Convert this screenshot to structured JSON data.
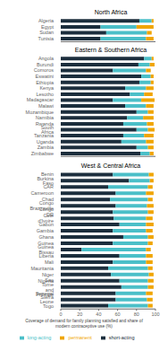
{
  "chart_data": [
    {
      "type": "bar",
      "title": "North Africa",
      "orientation": "horizontal",
      "stacked": true,
      "tick_labels": "y",
      "categories": [
        "Algeria",
        "Egypt",
        "Sudan",
        "Tunisia"
      ],
      "series": [
        {
          "name": "short-acting",
          "color": "#1c2e3d",
          "values": [
            83,
            42,
            48,
            42
          ]
        },
        {
          "name": "long-acting",
          "color": "#4bbfc8",
          "values": [
            13,
            38,
            43,
            48
          ]
        },
        {
          "name": "permanent",
          "color": "#f0a500",
          "values": [
            2,
            18,
            5,
            8
          ]
        }
      ],
      "xlim": [
        0,
        100
      ],
      "xticks": [
        0,
        20,
        40,
        60,
        80,
        100
      ],
      "grid": false
    },
    {
      "type": "bar",
      "title": "Eastern & Southern Africa",
      "orientation": "horizontal",
      "stacked": true,
      "tick_labels": "y",
      "categories": [
        "Angola",
        "Burundi",
        "Comoros",
        "Eswatini",
        "Ethiopia",
        "Kenya",
        "Lesotho",
        "Madagascar",
        "Malawi",
        "Mozambique",
        "Namibia",
        "Rwanda",
        "South Africa",
        "Tanzania",
        "Uganda",
        "Zambia",
        "Zimbabwe"
      ],
      "series": [
        {
          "name": "short-acting",
          "color": "#1c2e3d",
          "values": [
            88,
            82,
            55,
            85,
            83,
            68,
            73,
            55,
            68,
            80,
            70,
            66,
            80,
            66,
            64,
            80,
            84
          ]
        },
        {
          "name": "long-acting",
          "color": "#4bbfc8",
          "values": [
            8,
            12,
            35,
            10,
            12,
            22,
            15,
            30,
            22,
            12,
            17,
            25,
            12,
            22,
            26,
            12,
            10
          ]
        },
        {
          "name": "permanent",
          "color": "#f0a500",
          "values": [
            2,
            5,
            5,
            3,
            3,
            8,
            9,
            14,
            8,
            6,
            11,
            7,
            7,
            10,
            8,
            6,
            4
          ]
        }
      ],
      "xlim": [
        0,
        100
      ],
      "xticks": [
        0,
        20,
        40,
        60,
        80,
        100
      ],
      "grid": false
    },
    {
      "type": "bar",
      "title": "West & Central Africa",
      "orientation": "horizontal",
      "stacked": true,
      "xlabel": "Coverage of demand for family planning satisfied and share of\nmodern contraceptive use (%)",
      "categories": [
        "Benin",
        "Burkina Faso",
        "CAR",
        "Cameroon",
        "Chad",
        "Congo Brazzaville",
        "Congo DR",
        "Cote d'Ivoire",
        "Gabon",
        "Gambia",
        "Ghana",
        "Guinea",
        "Guinea Bissau",
        "Liberia",
        "Mali",
        "Mauritania",
        "Niger",
        "Nigeria",
        "Sao Tome and Principe",
        "Senegal",
        "Sierra Leone",
        "Togo"
      ],
      "series": [
        {
          "name": "short-acting",
          "color": "#1c2e3d",
          "values": [
            55,
            72,
            50,
            58,
            52,
            58,
            55,
            56,
            62,
            55,
            66,
            55,
            22,
            62,
            55,
            50,
            53,
            62,
            64,
            58,
            58,
            50
          ]
        },
        {
          "name": "long-acting",
          "color": "#4bbfc8",
          "values": [
            38,
            22,
            42,
            32,
            40,
            33,
            37,
            34,
            28,
            35,
            26,
            37,
            68,
            28,
            35,
            42,
            40,
            30,
            28,
            32,
            33,
            42
          ]
        },
        {
          "name": "permanent",
          "color": "#f0a500",
          "values": [
            5,
            4,
            5,
            8,
            5,
            7,
            6,
            7,
            8,
            7,
            6,
            5,
            5,
            7,
            7,
            5,
            5,
            6,
            6,
            7,
            6,
            5
          ]
        }
      ],
      "xlim": [
        0,
        100
      ],
      "xticks": [
        0,
        20,
        40,
        60,
        80,
        100
      ],
      "grid": false,
      "legend": "bottom"
    }
  ]
}
